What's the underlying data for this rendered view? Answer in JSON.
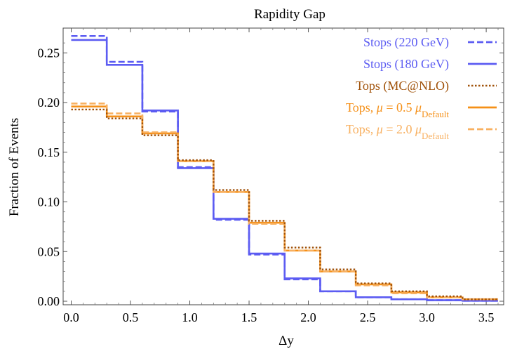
{
  "chart_data": {
    "type": "line",
    "title": "Rapidity Gap",
    "xlabel": "Δy",
    "ylabel": "Fraction of Events",
    "xlim": [
      0.0,
      3.6
    ],
    "ylim": [
      0.0,
      0.27
    ],
    "x_ticks": [
      "0.0",
      "0.5",
      "1.0",
      "1.5",
      "2.0",
      "2.5",
      "3.0",
      "3.5"
    ],
    "y_ticks": [
      "0.00",
      "0.05",
      "0.10",
      "0.15",
      "0.20",
      "0.25"
    ],
    "bin_edges": [
      0.0,
      0.3,
      0.6,
      0.9,
      1.2,
      1.5,
      1.8,
      2.1,
      2.4,
      2.7,
      3.0,
      3.3,
      3.6
    ],
    "legend_position": "top-right",
    "series": [
      {
        "name": "Stops (220 GeV)",
        "color": "#5c5cf2",
        "style": "dashed",
        "values": [
          0.267,
          0.241,
          0.191,
          0.135,
          0.082,
          0.047,
          0.022,
          0.01,
          0.004,
          0.002,
          0.001,
          0.0005
        ]
      },
      {
        "name": "Stops (180 GeV)",
        "color": "#5c5cf2",
        "style": "solid",
        "values": [
          0.263,
          0.238,
          0.192,
          0.134,
          0.083,
          0.048,
          0.023,
          0.01,
          0.004,
          0.002,
          0.001,
          0.0005
        ]
      },
      {
        "name": "Tops (MC@NLO)",
        "color": "#a0520a",
        "style": "dotted",
        "values": [
          0.193,
          0.184,
          0.167,
          0.142,
          0.112,
          0.081,
          0.054,
          0.032,
          0.018,
          0.01,
          0.005,
          0.002
        ]
      },
      {
        "name_prefix": "Tops, ",
        "name_mu": "μ",
        "name_value": " = 0.5 ",
        "name_sub": "Default",
        "color": "#f59018",
        "style": "solid",
        "values": [
          0.196,
          0.186,
          0.169,
          0.141,
          0.11,
          0.079,
          0.051,
          0.03,
          0.017,
          0.009,
          0.004,
          0.002
        ]
      },
      {
        "name_prefix": "Tops, ",
        "name_mu": "μ",
        "name_value": " = 2.0 ",
        "name_sub": "Default",
        "color": "#f8b060",
        "style": "dashed",
        "values": [
          0.199,
          0.189,
          0.17,
          0.141,
          0.11,
          0.078,
          0.051,
          0.03,
          0.016,
          0.008,
          0.004,
          0.002
        ]
      }
    ]
  }
}
